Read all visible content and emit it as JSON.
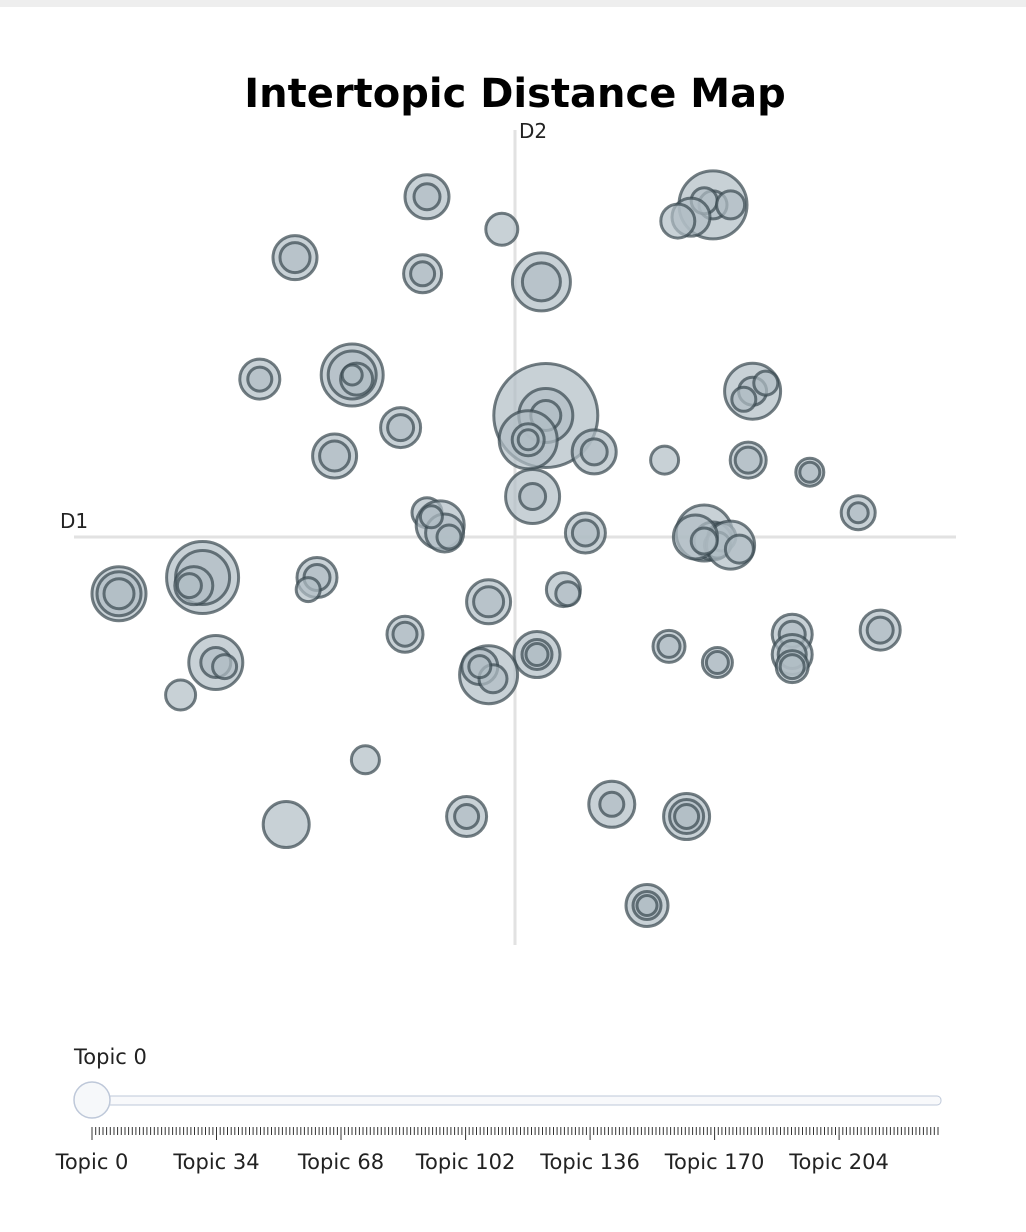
{
  "chart_data": {
    "type": "scatter",
    "title": "Intertopic Distance Map",
    "xlabel": "D1",
    "ylabel": "D2",
    "xlim": [
      -10,
      10
    ],
    "ylim": [
      -10,
      10
    ],
    "grid": false,
    "marker_color": "#B0BEC5",
    "marker_line_color": "#37474F",
    "points": [
      {
        "x": -2.0,
        "y": 8.4,
        "r": 22
      },
      {
        "x": -2.0,
        "y": 8.4,
        "r": 13
      },
      {
        "x": -0.3,
        "y": 7.6,
        "r": 16
      },
      {
        "x": -5.0,
        "y": 6.9,
        "r": 22
      },
      {
        "x": -5.0,
        "y": 6.9,
        "r": 15
      },
      {
        "x": -2.1,
        "y": 6.5,
        "r": 19
      },
      {
        "x": -2.1,
        "y": 6.5,
        "r": 12
      },
      {
        "x": 0.6,
        "y": 6.3,
        "r": 29
      },
      {
        "x": 0.6,
        "y": 6.3,
        "r": 19
      },
      {
        "x": 4.5,
        "y": 8.2,
        "r": 34
      },
      {
        "x": 4.5,
        "y": 8.2,
        "r": 14
      },
      {
        "x": 4.3,
        "y": 8.3,
        "r": 13
      },
      {
        "x": 4.0,
        "y": 7.9,
        "r": 19
      },
      {
        "x": 3.7,
        "y": 7.8,
        "r": 17
      },
      {
        "x": 4.9,
        "y": 8.2,
        "r": 14
      },
      {
        "x": -5.8,
        "y": 3.9,
        "r": 20
      },
      {
        "x": -5.8,
        "y": 3.9,
        "r": 12
      },
      {
        "x": -3.7,
        "y": 4.0,
        "r": 31
      },
      {
        "x": -3.7,
        "y": 4.0,
        "r": 24
      },
      {
        "x": -3.6,
        "y": 3.9,
        "r": 16
      },
      {
        "x": -3.7,
        "y": 4.0,
        "r": 10
      },
      {
        "x": -2.6,
        "y": 2.7,
        "r": 20
      },
      {
        "x": -2.6,
        "y": 2.7,
        "r": 13
      },
      {
        "x": -4.1,
        "y": 2.0,
        "r": 22
      },
      {
        "x": -4.1,
        "y": 2.0,
        "r": 15
      },
      {
        "x": 0.7,
        "y": 3.0,
        "r": 52
      },
      {
        "x": 0.7,
        "y": 3.0,
        "r": 27
      },
      {
        "x": 0.7,
        "y": 3.0,
        "r": 15
      },
      {
        "x": 0.3,
        "y": 2.4,
        "r": 29
      },
      {
        "x": 0.3,
        "y": 2.4,
        "r": 16
      },
      {
        "x": 0.3,
        "y": 2.4,
        "r": 10
      },
      {
        "x": 1.8,
        "y": 2.1,
        "r": 22
      },
      {
        "x": 1.8,
        "y": 2.1,
        "r": 13
      },
      {
        "x": 3.4,
        "y": 1.9,
        "r": 14
      },
      {
        "x": 5.3,
        "y": 1.9,
        "r": 18
      },
      {
        "x": 5.3,
        "y": 1.9,
        "r": 13
      },
      {
        "x": 6.7,
        "y": 1.6,
        "r": 14
      },
      {
        "x": 6.7,
        "y": 1.6,
        "r": 10
      },
      {
        "x": 5.4,
        "y": 3.6,
        "r": 28
      },
      {
        "x": 5.4,
        "y": 3.6,
        "r": 14
      },
      {
        "x": 5.7,
        "y": 3.8,
        "r": 12
      },
      {
        "x": 5.2,
        "y": 3.4,
        "r": 12
      },
      {
        "x": 0.4,
        "y": 1.0,
        "r": 27
      },
      {
        "x": 0.4,
        "y": 1.0,
        "r": 13
      },
      {
        "x": 7.8,
        "y": 0.6,
        "r": 17
      },
      {
        "x": 7.8,
        "y": 0.6,
        "r": 10
      },
      {
        "x": -2.0,
        "y": 0.6,
        "r": 15
      },
      {
        "x": -1.7,
        "y": 0.3,
        "r": 24
      },
      {
        "x": -1.6,
        "y": 0.1,
        "r": 19
      },
      {
        "x": -1.5,
        "y": 0.0,
        "r": 12
      },
      {
        "x": -1.9,
        "y": 0.5,
        "r": 11
      },
      {
        "x": 1.6,
        "y": 0.1,
        "r": 20
      },
      {
        "x": 1.6,
        "y": 0.1,
        "r": 13
      },
      {
        "x": 4.3,
        "y": 0.1,
        "r": 28
      },
      {
        "x": 4.5,
        "y": -0.1,
        "r": 19
      },
      {
        "x": 4.7,
        "y": 0.0,
        "r": 14
      },
      {
        "x": 4.6,
        "y": -0.2,
        "r": 13
      },
      {
        "x": 4.9,
        "y": -0.2,
        "r": 24
      },
      {
        "x": 5.1,
        "y": -0.3,
        "r": 14
      },
      {
        "x": 4.1,
        "y": 0.0,
        "r": 22
      },
      {
        "x": 4.3,
        "y": -0.1,
        "r": 13
      },
      {
        "x": -9.0,
        "y": -1.4,
        "r": 27
      },
      {
        "x": -9.0,
        "y": -1.4,
        "r": 22
      },
      {
        "x": -9.0,
        "y": -1.4,
        "r": 15
      },
      {
        "x": -7.1,
        "y": -1.0,
        "r": 36
      },
      {
        "x": -7.1,
        "y": -1.0,
        "r": 27
      },
      {
        "x": -7.3,
        "y": -1.2,
        "r": 19
      },
      {
        "x": -7.4,
        "y": -1.2,
        "r": 12
      },
      {
        "x": -4.5,
        "y": -1.0,
        "r": 20
      },
      {
        "x": -4.5,
        "y": -1.0,
        "r": 13
      },
      {
        "x": -4.7,
        "y": -1.3,
        "r": 12
      },
      {
        "x": -0.6,
        "y": -1.6,
        "r": 22
      },
      {
        "x": -0.6,
        "y": -1.6,
        "r": 15
      },
      {
        "x": 1.1,
        "y": -1.3,
        "r": 17
      },
      {
        "x": 1.2,
        "y": -1.4,
        "r": 12
      },
      {
        "x": -2.5,
        "y": -2.4,
        "r": 18
      },
      {
        "x": -2.5,
        "y": -2.4,
        "r": 12
      },
      {
        "x": -6.8,
        "y": -3.1,
        "r": 27
      },
      {
        "x": -6.8,
        "y": -3.1,
        "r": 15
      },
      {
        "x": -6.6,
        "y": -3.2,
        "r": 12
      },
      {
        "x": -7.6,
        "y": -3.9,
        "r": 15
      },
      {
        "x": 0.5,
        "y": -2.9,
        "r": 23
      },
      {
        "x": 0.5,
        "y": -2.9,
        "r": 15
      },
      {
        "x": 0.5,
        "y": -2.9,
        "r": 11
      },
      {
        "x": -0.6,
        "y": -3.4,
        "r": 29
      },
      {
        "x": -0.8,
        "y": -3.2,
        "r": 18
      },
      {
        "x": -0.5,
        "y": -3.5,
        "r": 14
      },
      {
        "x": -0.8,
        "y": -3.2,
        "r": 11
      },
      {
        "x": 3.5,
        "y": -2.7,
        "r": 16
      },
      {
        "x": 3.5,
        "y": -2.7,
        "r": 11
      },
      {
        "x": 4.6,
        "y": -3.1,
        "r": 15
      },
      {
        "x": 4.6,
        "y": -3.1,
        "r": 11
      },
      {
        "x": 6.3,
        "y": -2.4,
        "r": 20
      },
      {
        "x": 6.3,
        "y": -2.4,
        "r": 13
      },
      {
        "x": 6.3,
        "y": -2.9,
        "r": 20
      },
      {
        "x": 6.3,
        "y": -2.9,
        "r": 14
      },
      {
        "x": 6.3,
        "y": -3.2,
        "r": 16
      },
      {
        "x": 6.3,
        "y": -3.2,
        "r": 12
      },
      {
        "x": 8.3,
        "y": -2.3,
        "r": 20
      },
      {
        "x": 8.3,
        "y": -2.3,
        "r": 13
      },
      {
        "x": -3.4,
        "y": -5.5,
        "r": 14
      },
      {
        "x": -5.2,
        "y": -7.1,
        "r": 23
      },
      {
        "x": -1.1,
        "y": -6.9,
        "r": 20
      },
      {
        "x": -1.1,
        "y": -6.9,
        "r": 12
      },
      {
        "x": 2.2,
        "y": -6.6,
        "r": 23
      },
      {
        "x": 2.2,
        "y": -6.6,
        "r": 12
      },
      {
        "x": 3.9,
        "y": -6.9,
        "r": 23
      },
      {
        "x": 3.9,
        "y": -6.9,
        "r": 17
      },
      {
        "x": 3.9,
        "y": -6.9,
        "r": 12
      },
      {
        "x": 3.0,
        "y": -9.1,
        "r": 21
      },
      {
        "x": 3.0,
        "y": -9.1,
        "r": 14
      },
      {
        "x": 3.0,
        "y": -9.1,
        "r": 10
      }
    ]
  },
  "slider": {
    "current_label": "Topic 0",
    "value": 0,
    "min": 0,
    "max": 231,
    "tick_labels": [
      "Topic 0",
      "Topic 34",
      "Topic 68",
      "Topic 102",
      "Topic 136",
      "Topic 170",
      "Topic 204"
    ],
    "tick_values": [
      0,
      34,
      68,
      102,
      136,
      170,
      204
    ]
  }
}
